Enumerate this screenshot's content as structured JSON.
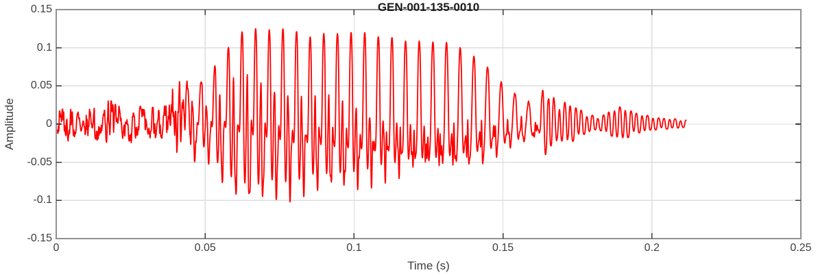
{
  "figure": {
    "title": "GEN-001-135-0010",
    "xlabel": "Time (s)",
    "ylabel": "Amplitude"
  },
  "chart_data": {
    "type": "line",
    "title": "GEN-001-135-0010",
    "xlabel": "Time (s)",
    "ylabel": "Amplitude",
    "xlim": [
      0,
      0.25
    ],
    "ylim": [
      -0.15,
      0.15
    ],
    "x_ticks": [
      0,
      0.05,
      0.1,
      0.15,
      0.2,
      0.25
    ],
    "x_tick_labels": [
      "0",
      "0.05",
      "0.1",
      "0.15",
      "0.2",
      "0.25"
    ],
    "y_ticks": [
      -0.15,
      -0.1,
      -0.05,
      0,
      0.05,
      0.1,
      0.15
    ],
    "y_tick_labels": [
      "-0.15",
      "-0.1",
      "-0.05",
      "0",
      "0.05",
      "0.1",
      "0.15"
    ],
    "grid": true,
    "legend": null,
    "line_color": "#ff0000",
    "signal": {
      "kind": "speech_waveform",
      "duration_s": 0.2115,
      "sample_dt_s": 8e-05,
      "pitch_hz": 218,
      "ring_hz": 660,
      "hf_hz": 1500,
      "tail_ring_hz": 540,
      "neg_scale": 0.85,
      "noise_seed": 7,
      "peak_amplitude": 0.128,
      "min_amplitude": -0.107,
      "envelope": [
        [
          0.0,
          0.01
        ],
        [
          0.002,
          0.024
        ],
        [
          0.0045,
          0.03
        ],
        [
          0.007,
          0.018
        ],
        [
          0.01,
          0.02
        ],
        [
          0.013,
          0.024
        ],
        [
          0.016,
          0.02
        ],
        [
          0.0185,
          0.042
        ],
        [
          0.021,
          0.024
        ],
        [
          0.025,
          0.027
        ],
        [
          0.029,
          0.022
        ],
        [
          0.033,
          0.024
        ],
        [
          0.037,
          0.028
        ],
        [
          0.0395,
          0.05
        ],
        [
          0.0415,
          0.094
        ],
        [
          0.044,
          0.052
        ],
        [
          0.047,
          0.058
        ],
        [
          0.05,
          0.066
        ],
        [
          0.053,
          0.076
        ],
        [
          0.056,
          0.09
        ],
        [
          0.06,
          0.118
        ],
        [
          0.0655,
          0.128
        ],
        [
          0.07,
          0.121
        ],
        [
          0.075,
          0.122
        ],
        [
          0.08,
          0.124
        ],
        [
          0.085,
          0.113
        ],
        [
          0.09,
          0.118
        ],
        [
          0.095,
          0.12
        ],
        [
          0.1,
          0.122
        ],
        [
          0.105,
          0.12
        ],
        [
          0.11,
          0.115
        ],
        [
          0.115,
          0.117
        ],
        [
          0.12,
          0.113
        ],
        [
          0.125,
          0.115
        ],
        [
          0.13,
          0.118
        ],
        [
          0.134,
          0.114
        ],
        [
          0.138,
          0.103
        ],
        [
          0.142,
          0.096
        ],
        [
          0.146,
          0.08
        ],
        [
          0.15,
          0.06
        ],
        [
          0.154,
          0.047
        ],
        [
          0.158,
          0.034
        ],
        [
          0.1615,
          0.05
        ],
        [
          0.164,
          0.056
        ],
        [
          0.167,
          0.04
        ],
        [
          0.17,
          0.033
        ],
        [
          0.174,
          0.024
        ],
        [
          0.178,
          0.013
        ],
        [
          0.182,
          0.008
        ],
        [
          0.185,
          0.015
        ],
        [
          0.188,
          0.021
        ],
        [
          0.191,
          0.022
        ],
        [
          0.194,
          0.015
        ],
        [
          0.198,
          0.011
        ],
        [
          0.202,
          0.008
        ],
        [
          0.206,
          0.007
        ],
        [
          0.2115,
          0.005
        ]
      ],
      "voicing": [
        [
          0.0,
          0.12
        ],
        [
          0.034,
          0.12
        ],
        [
          0.04,
          0.45
        ],
        [
          0.048,
          0.85
        ],
        [
          0.058,
          1.0
        ],
        [
          0.15,
          1.0
        ],
        [
          0.158,
          0.95
        ],
        [
          0.2115,
          0.92
        ]
      ],
      "tail_mix": [
        [
          0.0,
          0.0
        ],
        [
          0.158,
          0.0
        ],
        [
          0.168,
          0.7
        ],
        [
          0.175,
          1.0
        ],
        [
          0.2115,
          1.0
        ]
      ],
      "noise_envelope": [
        [
          0.0,
          0.006
        ],
        [
          0.02,
          0.007
        ],
        [
          0.036,
          0.008
        ],
        [
          0.042,
          0.012
        ],
        [
          0.052,
          0.01
        ],
        [
          0.06,
          0.008
        ],
        [
          0.14,
          0.008
        ],
        [
          0.16,
          0.004
        ],
        [
          0.18,
          0.0015
        ],
        [
          0.2115,
          0.001
        ]
      ]
    }
  },
  "colors": {
    "background": "#ffffff",
    "line": "#ff0000",
    "grid": "#dcdcdc",
    "box": "#919191",
    "tick": "#3a3a3a",
    "tick_label": "#3d3d3d",
    "axis_label": "#3d3d3d",
    "title": "#1a1a1a"
  }
}
